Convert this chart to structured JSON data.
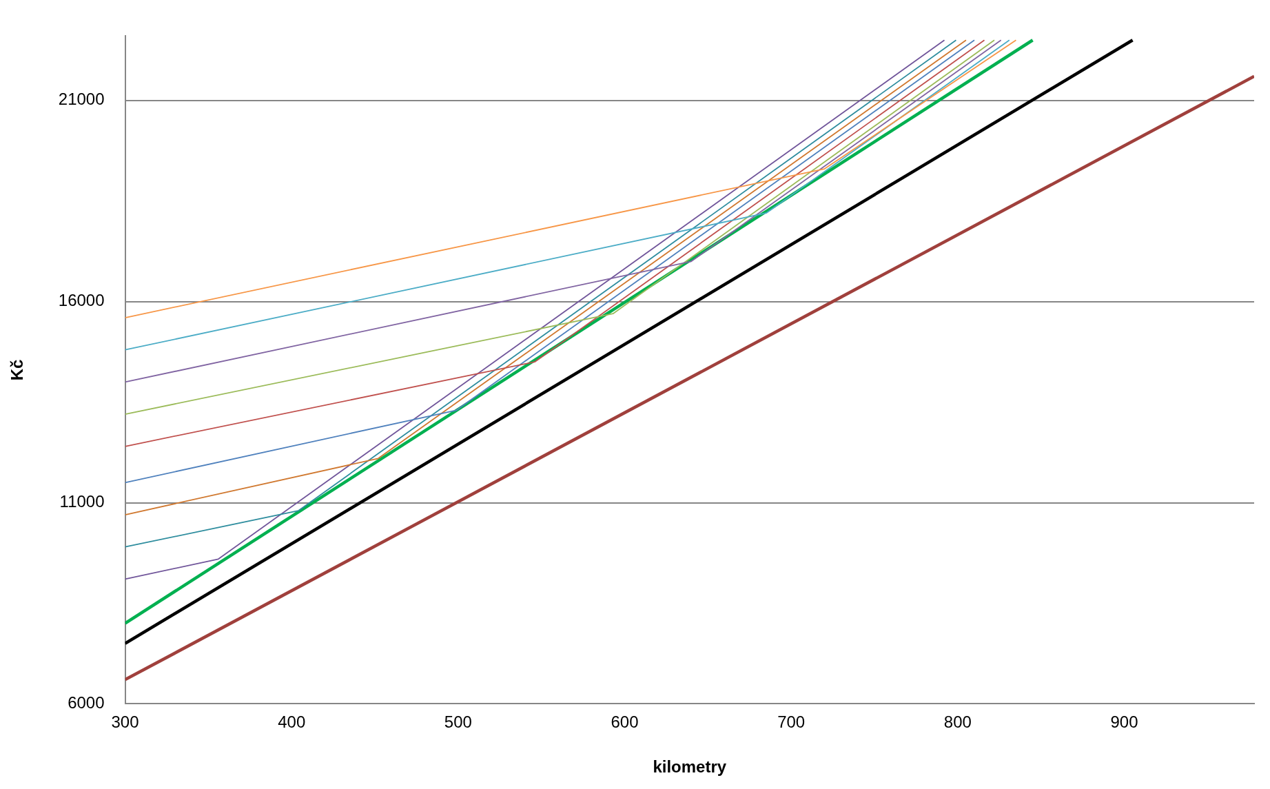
{
  "chart_data": {
    "type": "line",
    "xlabel": "kilometry",
    "ylabel": "Kč",
    "xlim": [
      300,
      978
    ],
    "ylim": [
      6000,
      22600
    ],
    "xticks": [
      300,
      400,
      500,
      600,
      700,
      800,
      900
    ],
    "yticks": [
      6000,
      11000,
      16000,
      21000
    ],
    "grid": "y",
    "legend": false,
    "series": [
      {
        "color": "#f79646",
        "x": [
          300,
          720,
          835
        ],
        "values": [
          15600,
          19300,
          22500
        ]
      },
      {
        "color": "#4bacc6",
        "x": [
          300,
          685,
          831
        ],
        "values": [
          14800,
          18200,
          22500
        ]
      },
      {
        "color": "#8064a2",
        "x": [
          300,
          640,
          826
        ],
        "values": [
          14000,
          17000,
          22500
        ]
      },
      {
        "color": "#9bbb59",
        "x": [
          300,
          593,
          822
        ],
        "values": [
          13200,
          15700,
          22500
        ]
      },
      {
        "color": "#c0504d",
        "x": [
          300,
          546,
          816
        ],
        "values": [
          12400,
          14500,
          22500
        ]
      },
      {
        "color": "#4f81bd",
        "x": [
          300,
          499,
          810
        ],
        "values": [
          11500,
          13300,
          22500
        ]
      },
      {
        "color": "#d0782f",
        "x": [
          300,
          452,
          805
        ],
        "values": [
          10700,
          12100,
          22500
        ]
      },
      {
        "color": "#2e8d9e",
        "x": [
          300,
          404,
          799
        ],
        "values": [
          9900,
          10800,
          22500
        ]
      },
      {
        "color": "#70559a",
        "x": [
          300,
          356,
          792
        ],
        "values": [
          9100,
          9600,
          22500
        ]
      },
      {
        "color": "#00b050",
        "x": [
          300,
          845
        ],
        "values": [
          8000,
          22500
        ]
      },
      {
        "color": "#000000",
        "x": [
          300,
          905
        ],
        "values": [
          7500,
          22500
        ]
      },
      {
        "color": "#a0403c",
        "x": [
          300,
          978
        ],
        "values": [
          6600,
          21600
        ]
      }
    ]
  }
}
